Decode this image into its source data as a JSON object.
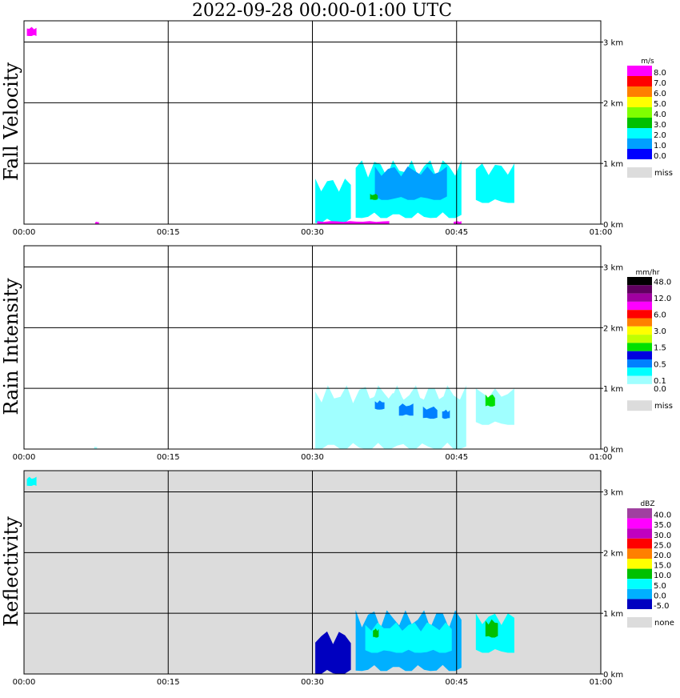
{
  "header": {
    "title": "2022-09-28   00:00-01:00 UTC"
  },
  "x_ticks": [
    "00:00",
    "00:15",
    "00:30",
    "00:45",
    "01:00"
  ],
  "y_ticks": [
    "0 km",
    "1 km",
    "2 km",
    "3 km"
  ],
  "panels": [
    {
      "label": "Fall Velocity",
      "unit": "m/s",
      "background": "#ffffff",
      "miss_label": "miss",
      "scale": [
        {
          "label": "8.0",
          "color": "#ff00ff"
        },
        {
          "label": "7.0",
          "color": "#ff0000"
        },
        {
          "label": "6.0",
          "color": "#ff8000"
        },
        {
          "label": "5.0",
          "color": "#ffff00"
        },
        {
          "label": "4.0",
          "color": "#80ff00"
        },
        {
          "label": "3.0",
          "color": "#00c000"
        },
        {
          "label": "2.0",
          "color": "#00ffff"
        },
        {
          "label": "1.0",
          "color": "#00a0ff"
        },
        {
          "label": "0.0",
          "color": "#0000ff"
        }
      ]
    },
    {
      "label": "Rain Intensity",
      "unit": "mm/hr",
      "background": "#ffffff",
      "miss_label": "miss",
      "scale": [
        {
          "label": "48.0",
          "color": "#000000"
        },
        {
          "label": "",
          "color": "#600060"
        },
        {
          "label": "12.0",
          "color": "#a000a0"
        },
        {
          "label": "",
          "color": "#ff00ff"
        },
        {
          "label": "6.0",
          "color": "#ff0000"
        },
        {
          "label": "",
          "color": "#ff8000"
        },
        {
          "label": "3.0",
          "color": "#ffff00"
        },
        {
          "label": "",
          "color": "#c0ff00"
        },
        {
          "label": "1.5",
          "color": "#00e000"
        },
        {
          "label": "",
          "color": "#0000e0"
        },
        {
          "label": "0.5",
          "color": "#0080ff"
        },
        {
          "label": "",
          "color": "#00ffff"
        },
        {
          "label": "0.1",
          "color": "#a0ffff"
        },
        {
          "label": "0.0",
          "color": "#ffffff"
        }
      ]
    },
    {
      "label": "Reflectivity",
      "unit": "dBZ",
      "background": "#dcdcdc",
      "miss_label": "none",
      "scale": [
        {
          "label": "40.0",
          "color": "#a040a0"
        },
        {
          "label": "35.0",
          "color": "#ff00ff"
        },
        {
          "label": "30.0",
          "color": "#c000c0"
        },
        {
          "label": "25.0",
          "color": "#ff0000"
        },
        {
          "label": "20.0",
          "color": "#ff8000"
        },
        {
          "label": "15.0",
          "color": "#ffff00"
        },
        {
          "label": "10.0",
          "color": "#00c000"
        },
        {
          "label": "5.0",
          "color": "#00ffff"
        },
        {
          "label": "0.0",
          "color": "#00b0ff"
        },
        {
          "label": "-5.0",
          "color": "#0000c0"
        }
      ]
    }
  ],
  "chart_data": {
    "type": "heatmap",
    "x_axis": {
      "label": "",
      "range": [
        "00:00",
        "01:00"
      ]
    },
    "y_axis": {
      "label": "",
      "range": [
        0,
        3.5
      ],
      "unit": "km"
    },
    "precipitation_cells": [
      {
        "x_start": "00:30",
        "x_end": "00:51",
        "height_top_km": 1.1
      }
    ],
    "panel_features": [
      {
        "panel": "Fall Velocity",
        "blobs": [
          {
            "x": [
              34.5,
              45.5
            ],
            "z": [
              0.1,
              1.05
            ],
            "value": 1.5
          },
          {
            "x": [
              36.5,
              44
            ],
            "z": [
              0.4,
              0.95
            ],
            "value": 0.5
          },
          {
            "x": [
              47,
              51
            ],
            "z": [
              0.35,
              1.0
            ],
            "value": 1.5
          },
          {
            "x": [
              30.3,
              34
            ],
            "z": [
              0.02,
              0.75
            ],
            "value": 1.5
          },
          {
            "x": [
              36,
              36.8
            ],
            "z": [
              0.4,
              0.5
            ],
            "value": 3.0
          },
          {
            "x": [
              30.5,
              38
            ],
            "z": [
              0.0,
              0.05
            ],
            "value": 8.0
          },
          {
            "x": [
              44.7,
              45.5
            ],
            "z": [
              0.0,
              0.05
            ],
            "value": 8.0
          },
          {
            "x": [
              7.4,
              7.8
            ],
            "z": [
              0.0,
              0.04
            ],
            "value": 8.0
          },
          {
            "x": [
              0.3,
              1.3
            ],
            "z": [
              3.1,
              3.25
            ],
            "value": 8.0
          }
        ]
      },
      {
        "panel": "Rain Intensity",
        "blobs": [
          {
            "x": [
              30.3,
              46
            ],
            "z": [
              0.0,
              1.05
            ],
            "value": 0.1
          },
          {
            "x": [
              35,
              45
            ],
            "z": [
              0.35,
              0.95
            ],
            "value": 0.3
          },
          {
            "x": [
              36.5,
              37.5
            ],
            "z": [
              0.65,
              0.8
            ],
            "value": 0.5
          },
          {
            "x": [
              39,
              40.5
            ],
            "z": [
              0.55,
              0.75
            ],
            "value": 0.5
          },
          {
            "x": [
              41.5,
              43
            ],
            "z": [
              0.5,
              0.7
            ],
            "value": 0.5
          },
          {
            "x": [
              43.5,
              44.3
            ],
            "z": [
              0.5,
              0.65
            ],
            "value": 0.5
          },
          {
            "x": [
              47,
              51
            ],
            "z": [
              0.4,
              1.0
            ],
            "value": 0.3
          },
          {
            "x": [
              48,
              49
            ],
            "z": [
              0.7,
              0.9
            ],
            "value": 1.2
          },
          {
            "x": [
              7.3,
              7.6
            ],
            "z": [
              0.0,
              0.04
            ],
            "value": 0.1
          }
        ]
      },
      {
        "panel": "Reflectivity",
        "blobs": [
          {
            "x": [
              30.3,
              34
            ],
            "z": [
              0.0,
              0.7
            ],
            "value": -5.0
          },
          {
            "x": [
              34.5,
              45.5
            ],
            "z": [
              0.05,
              1.05
            ],
            "value": 0.0
          },
          {
            "x": [
              35.5,
              44.5
            ],
            "z": [
              0.35,
              0.85
            ],
            "value": 5.0
          },
          {
            "x": [
              36.3,
              36.9
            ],
            "z": [
              0.6,
              0.75
            ],
            "value": 10.0
          },
          {
            "x": [
              47,
              51
            ],
            "z": [
              0.35,
              1.0
            ],
            "value": 5.0
          },
          {
            "x": [
              48,
              49.3
            ],
            "z": [
              0.6,
              0.9
            ],
            "value": 12.0
          },
          {
            "x": [
              0.3,
              1.3
            ],
            "z": [
              3.1,
              3.25
            ],
            "value": 5.0
          }
        ]
      }
    ]
  }
}
